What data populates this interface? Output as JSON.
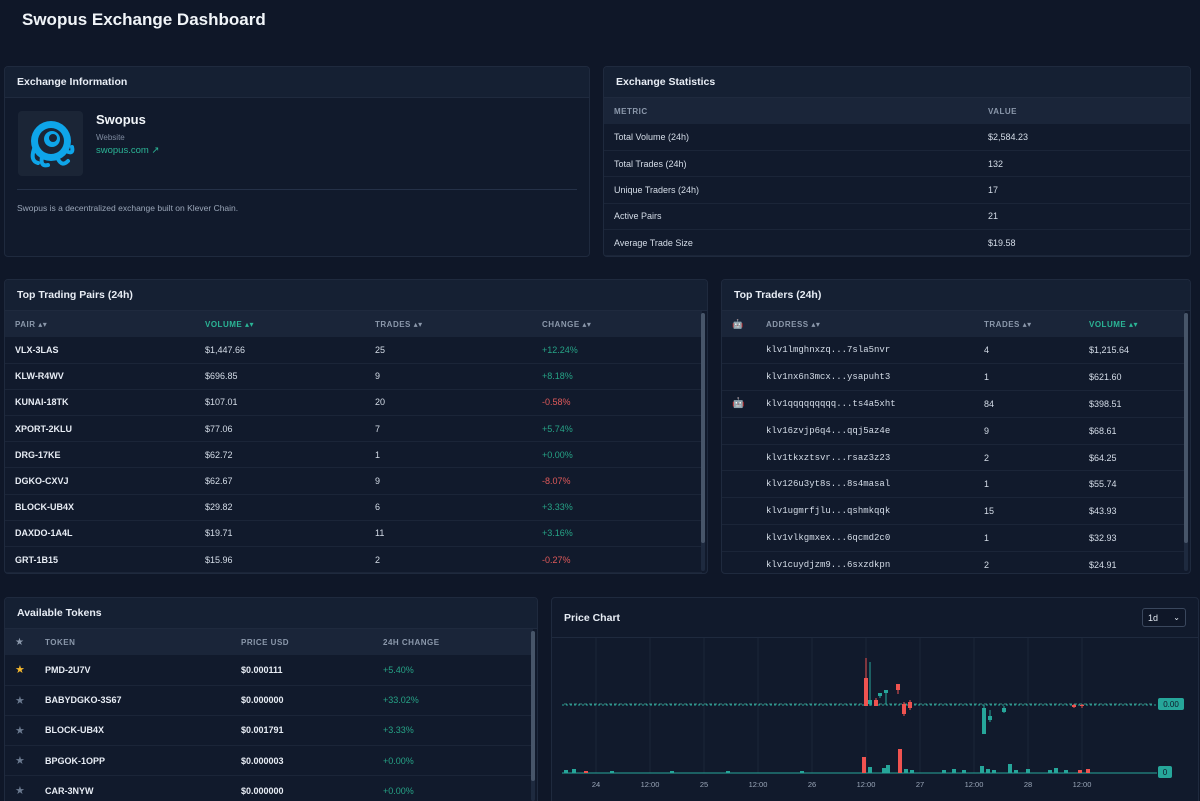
{
  "page": {
    "title": "Swopus Exchange Dashboard"
  },
  "exchange_info": {
    "header": "Exchange Information",
    "name": "Swopus",
    "website_label": "Website",
    "website_link": "swopus.com ↗",
    "description": "Swopus is a decentralized exchange built on Klever Chain."
  },
  "exchange_stats": {
    "header": "Exchange Statistics",
    "columns": [
      "METRIC",
      "VALUE"
    ],
    "rows": [
      {
        "metric": "Total Volume (24h)",
        "value": "$2,584.23"
      },
      {
        "metric": "Total Trades (24h)",
        "value": "132"
      },
      {
        "metric": "Unique Traders (24h)",
        "value": "17"
      },
      {
        "metric": "Active Pairs",
        "value": "21"
      },
      {
        "metric": "Average Trade Size",
        "value": "$19.58"
      }
    ]
  },
  "top_pairs": {
    "header": "Top Trading Pairs (24h)",
    "columns": [
      "PAIR ▴▾",
      "VOLUME ▴▾",
      "TRADES ▴▾",
      "CHANGE ▴▾"
    ],
    "rows": [
      {
        "pair": "VLX-3LAS",
        "volume": "$1,447.66",
        "trades": "25",
        "change": "+12.24%",
        "dir": "pos"
      },
      {
        "pair": "KLW-R4WV",
        "volume": "$696.85",
        "trades": "9",
        "change": "+8.18%",
        "dir": "pos"
      },
      {
        "pair": "KUNAI-18TK",
        "volume": "$107.01",
        "trades": "20",
        "change": "-0.58%",
        "dir": "neg"
      },
      {
        "pair": "XPORT-2KLU",
        "volume": "$77.06",
        "trades": "7",
        "change": "+5.74%",
        "dir": "pos"
      },
      {
        "pair": "DRG-17KE",
        "volume": "$62.72",
        "trades": "1",
        "change": "+0.00%",
        "dir": "pos"
      },
      {
        "pair": "DGKO-CXVJ",
        "volume": "$62.67",
        "trades": "9",
        "change": "-8.07%",
        "dir": "neg"
      },
      {
        "pair": "BLOCK-UB4X",
        "volume": "$29.82",
        "trades": "6",
        "change": "+3.33%",
        "dir": "pos"
      },
      {
        "pair": "DAXDO-1A4L",
        "volume": "$19.71",
        "trades": "11",
        "change": "+3.16%",
        "dir": "pos"
      },
      {
        "pair": "GRT-1B15",
        "volume": "$15.96",
        "trades": "2",
        "change": "-0.27%",
        "dir": "neg"
      }
    ]
  },
  "top_traders": {
    "header": "Top Traders (24h)",
    "columns": [
      "🤖",
      "ADDRESS ▴▾",
      "TRADES ▴▾",
      "VOLUME ▴▾"
    ],
    "rows": [
      {
        "bot": "",
        "address": "klv1lmghnxzq...7sla5nvr",
        "trades": "4",
        "volume": "$1,215.64"
      },
      {
        "bot": "",
        "address": "klv1nx6n3mcx...ysapuht3",
        "trades": "1",
        "volume": "$621.60"
      },
      {
        "bot": "🤖",
        "address": "klv1qqqqqqqqq...ts4a5xht",
        "trades": "84",
        "volume": "$398.51"
      },
      {
        "bot": "",
        "address": "klv16zvjp6q4...qqj5az4e",
        "trades": "9",
        "volume": "$68.61"
      },
      {
        "bot": "",
        "address": "klv1tkxztsvr...rsaz3z23",
        "trades": "2",
        "volume": "$64.25"
      },
      {
        "bot": "",
        "address": "klv126u3yt8s...8s4masal",
        "trades": "1",
        "volume": "$55.74"
      },
      {
        "bot": "",
        "address": "klv1ugmrfjlu...qshmkqqk",
        "trades": "15",
        "volume": "$43.93"
      },
      {
        "bot": "",
        "address": "klv1vlkgmxex...6qcmd2c0",
        "trades": "1",
        "volume": "$32.93"
      },
      {
        "bot": "",
        "address": "klv1cuydjzm9...6sxzdkpn",
        "trades": "2",
        "volume": "$24.91"
      }
    ]
  },
  "tokens": {
    "header": "Available Tokens",
    "columns": [
      "★",
      "TOKEN",
      "PRICE USD",
      "24H CHANGE"
    ],
    "rows": [
      {
        "star": "★",
        "fav": true,
        "token": "PMD-2U7V",
        "price": "$0.000111",
        "change": "+5.40%"
      },
      {
        "star": "★",
        "fav": false,
        "token": "BABYDGKO-3S67",
        "price": "$0.000000",
        "change": "+33.02%"
      },
      {
        "star": "★",
        "fav": false,
        "token": "BLOCK-UB4X",
        "price": "$0.001791",
        "change": "+3.33%"
      },
      {
        "star": "★",
        "fav": false,
        "token": "BPGOK-1OPP",
        "price": "$0.000003",
        "change": "+0.00%"
      },
      {
        "star": "★",
        "fav": false,
        "token": "CAR-3NYW",
        "price": "$0.000000",
        "change": "+0.00%"
      }
    ]
  },
  "price_chart": {
    "header": "Price Chart",
    "interval": "1d",
    "price_label": "0.00",
    "volume_label": "0",
    "x_ticks": [
      "24",
      "12:00",
      "25",
      "12:00",
      "26",
      "12:00",
      "27",
      "12:00",
      "28",
      "12:00"
    ]
  },
  "chart_data": {
    "type": "candlestick",
    "title": "Price Chart",
    "interval": "1d",
    "x_ticks": [
      "24",
      "12:00",
      "25",
      "12:00",
      "26",
      "12:00",
      "27",
      "12:00",
      "28",
      "12:00"
    ],
    "last_price": "0.00",
    "last_volume": "0",
    "colors": {
      "up": "#26a69a",
      "down": "#ef5350"
    }
  }
}
